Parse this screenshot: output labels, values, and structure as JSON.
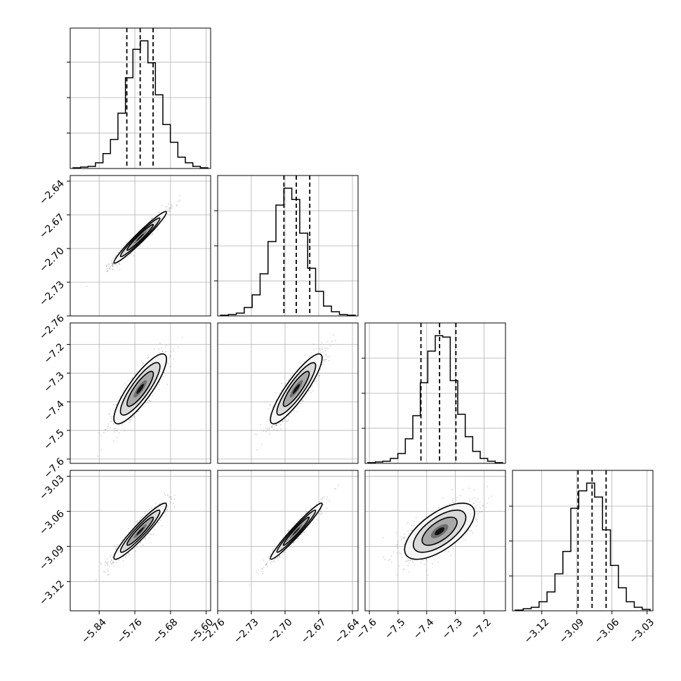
{
  "chart_data": {
    "type": "corner",
    "parameters": [
      {
        "index": 0,
        "median": -5.748,
        "q16": -5.778,
        "q84": -5.719,
        "range": [
          -5.905,
          -5.59
        ],
        "ticks": [
          -5.84,
          -5.76,
          -5.68,
          -5.6
        ],
        "tick_labels": [
          "−5.84",
          "−5.76",
          "−5.68",
          "−5.60"
        ]
      },
      {
        "index": 1,
        "median": -2.69,
        "q16": -2.701,
        "q84": -2.678,
        "range": [
          -2.76,
          -2.635
        ],
        "ticks": [
          -2.76,
          -2.73,
          -2.7,
          -2.67,
          -2.64
        ],
        "tick_labels": [
          "−2.76",
          "−2.73",
          "−2.70",
          "−2.67",
          "−2.64"
        ]
      },
      {
        "index": 2,
        "median": -7.355,
        "q16": -7.42,
        "q84": -7.298,
        "range": [
          -7.615,
          -7.125
        ],
        "ticks": [
          -7.6,
          -7.5,
          -7.4,
          -7.3,
          -7.2
        ],
        "tick_labels": [
          "−7.6",
          "−7.5",
          "−7.4",
          "−7.3",
          "−7.2"
        ]
      },
      {
        "index": 3,
        "median": -3.077,
        "q16": -3.089,
        "q84": -3.065,
        "range": [
          -3.145,
          -3.025
        ],
        "ticks": [
          -3.12,
          -3.09,
          -3.06,
          -3.03
        ],
        "tick_labels": [
          "−3.12",
          "−3.09",
          "−3.06",
          "−3.03"
        ]
      }
    ],
    "histograms": [
      {
        "param": 0,
        "counts": [
          1,
          2,
          3,
          8,
          21,
          41,
          78,
          128,
          168,
          180,
          149,
          104,
          62,
          37,
          16,
          8,
          3,
          1
        ]
      },
      {
        "param": 1,
        "counts": [
          1,
          2,
          4,
          12,
          30,
          60,
          106,
          158,
          182,
          166,
          118,
          68,
          35,
          14,
          6,
          2,
          1
        ]
      },
      {
        "param": 2,
        "counts": [
          1,
          2,
          3,
          7,
          14,
          35,
          68,
          115,
          160,
          182,
          180,
          118,
          70,
          38,
          17,
          7,
          3,
          1
        ]
      },
      {
        "param": 3,
        "counts": [
          1,
          3,
          5,
          13,
          27,
          53,
          85,
          147,
          172,
          183,
          163,
          116,
          65,
          33,
          13,
          5,
          2
        ]
      }
    ],
    "correlations": {
      "1-0": 0.97,
      "2-0": 0.85,
      "3-0": 0.94,
      "2-1": 0.88,
      "3-1": 0.97,
      "3-2": 0.65
    },
    "quantiles": [
      0.16,
      0.5,
      0.84
    ],
    "grid": true,
    "xlabel": "",
    "ylabel": ""
  }
}
